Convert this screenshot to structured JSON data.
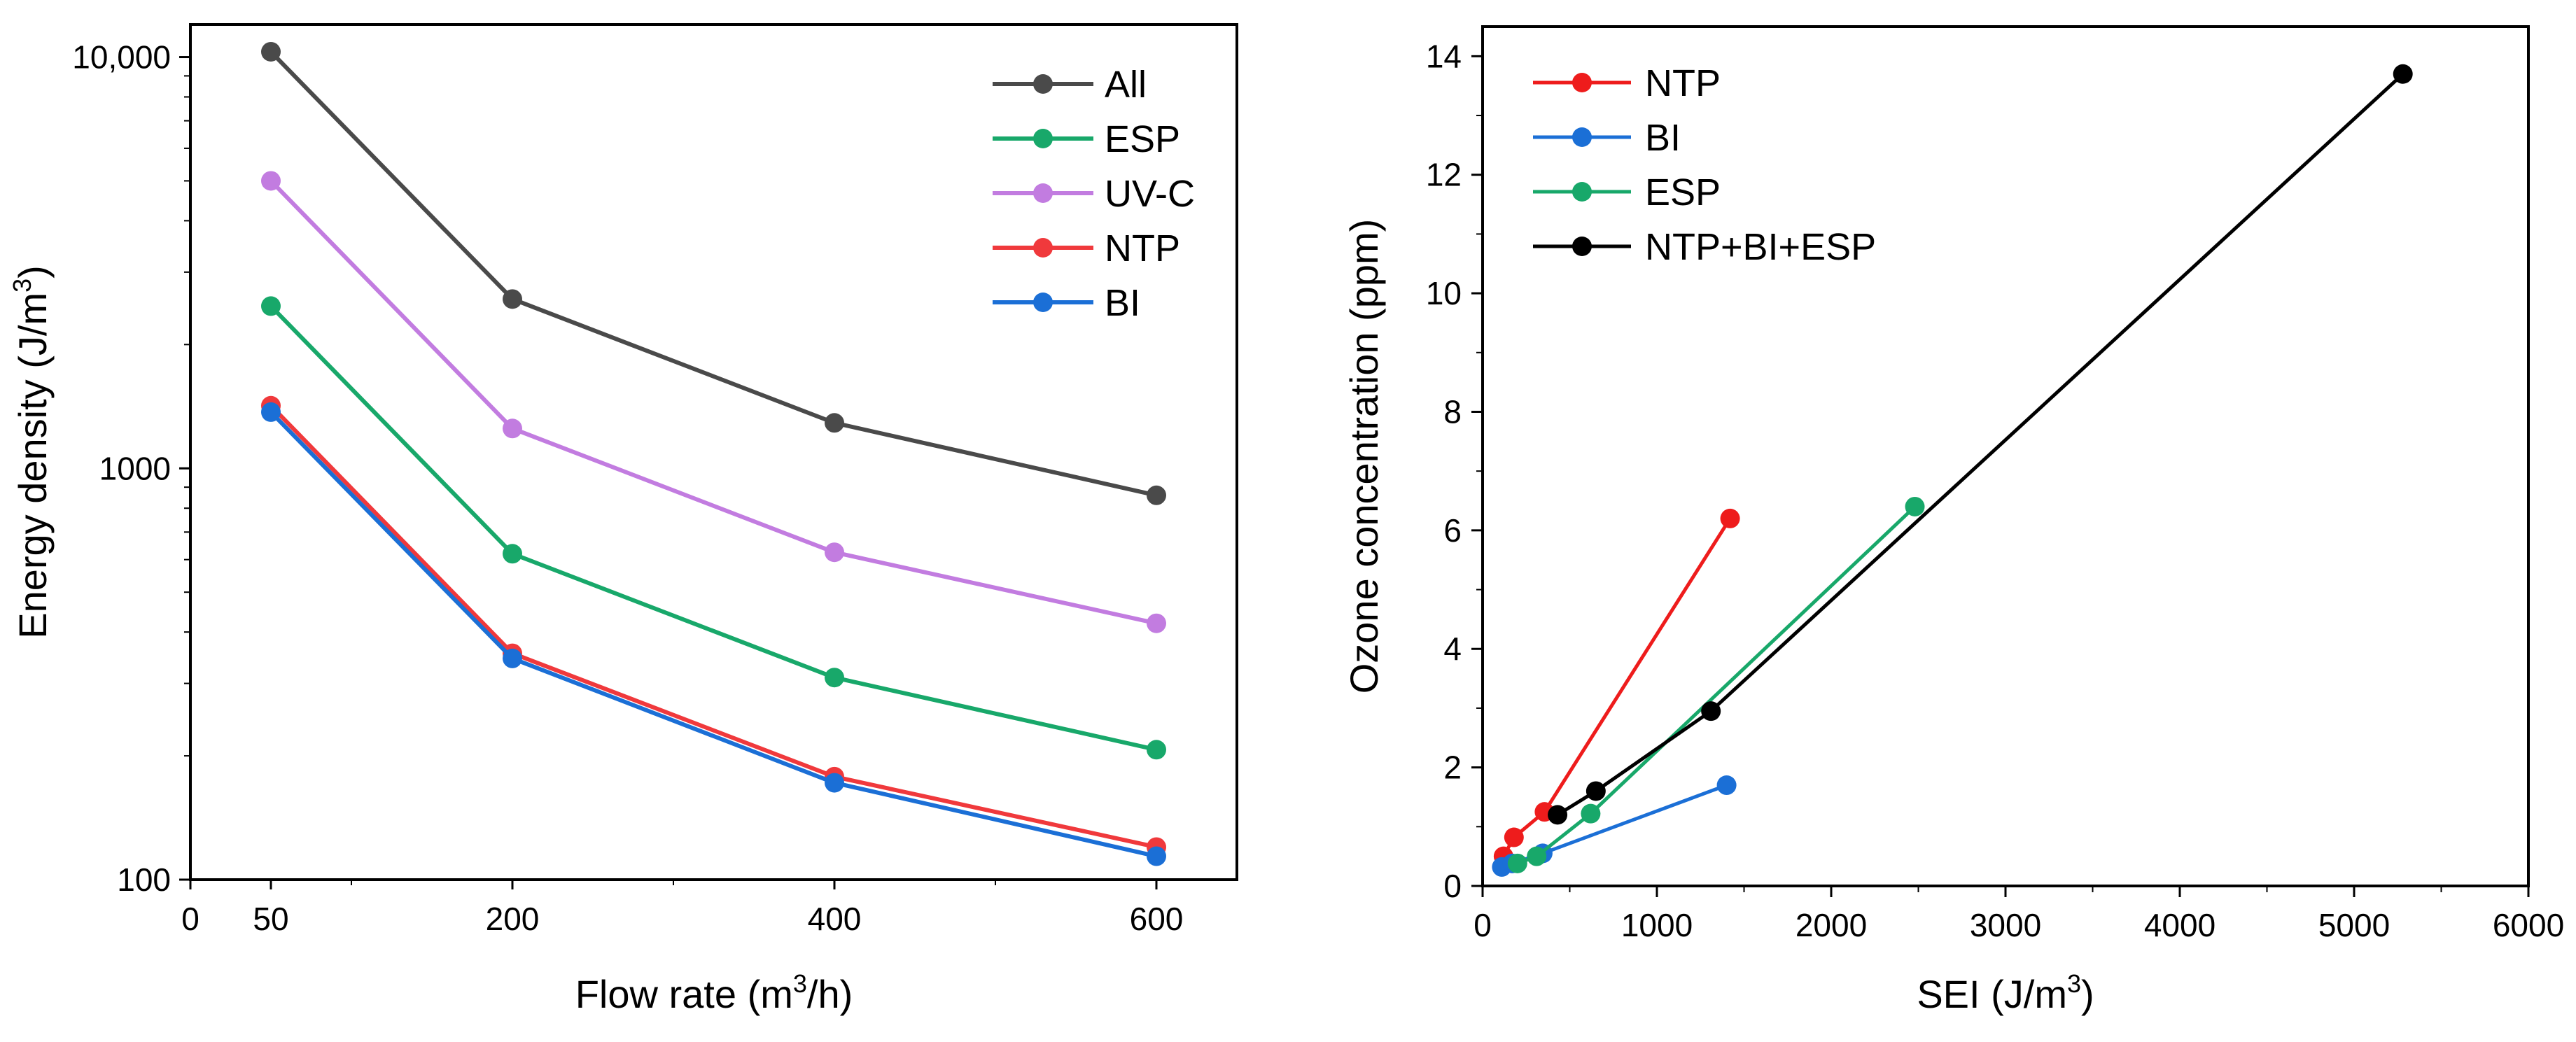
{
  "chart_data": [
    {
      "type": "line",
      "yscale": "log",
      "xlabel": "Flow rate (m",
      "xlabel_sup": "3",
      "xlabel_tail": "/h)",
      "ylabel": "Energy density (J/m",
      "ylabel_sup": "3",
      "ylabel_tail": ")",
      "xlim": [
        0,
        650
      ],
      "ylim": [
        100,
        12000
      ],
      "x_ticks": [
        0,
        50,
        200,
        400,
        600
      ],
      "x_tick_labels": [
        "0",
        "50",
        "200",
        "400",
        "600"
      ],
      "y_ticks": [
        100,
        1000,
        10000
      ],
      "y_tick_labels": [
        "100",
        "1000",
        "10,000"
      ],
      "legend_position": "top-right",
      "x": [
        50,
        200,
        400,
        600
      ],
      "series": [
        {
          "name": "All",
          "color": "#4a4a4a",
          "values": [
            10300,
            2580,
            1290,
            860
          ]
        },
        {
          "name": "ESP",
          "color": "#18a86a",
          "values": [
            2480,
            620,
            310,
            207
          ]
        },
        {
          "name": "UV-C",
          "color": "#c27ce0",
          "values": [
            5000,
            1250,
            625,
            420
          ]
        },
        {
          "name": "NTP",
          "color": "#f0393c",
          "values": [
            1420,
            355,
            178,
            120
          ]
        },
        {
          "name": "BI",
          "color": "#1b6fd6",
          "values": [
            1370,
            345,
            172,
            114
          ]
        }
      ]
    },
    {
      "type": "line",
      "xlabel": "SEI (J/m",
      "xlabel_sup": "3",
      "xlabel_tail": ")",
      "ylabel": "Ozone concentration (ppm)",
      "xlim": [
        0,
        6000
      ],
      "ylim": [
        0,
        14.5
      ],
      "x_ticks": [
        0,
        1000,
        2000,
        3000,
        4000,
        5000,
        6000
      ],
      "x_tick_labels": [
        "0",
        "1000",
        "2000",
        "3000",
        "4000",
        "5000",
        "6000"
      ],
      "y_ticks": [
        0,
        2,
        4,
        6,
        8,
        10,
        12,
        14
      ],
      "y_tick_labels": [
        "0",
        "2",
        "4",
        "6",
        "8",
        "10",
        "12",
        "14"
      ],
      "legend_position": "top-left",
      "series": [
        {
          "name": "NTP",
          "color": "#ee1c1c",
          "x": [
            120,
            180,
            355,
            1420
          ],
          "y": [
            0.5,
            0.82,
            1.25,
            6.2
          ]
        },
        {
          "name": "BI",
          "color": "#1b6fd6",
          "x": [
            110,
            170,
            345,
            1400
          ],
          "y": [
            0.32,
            0.38,
            0.55,
            1.7
          ]
        },
        {
          "name": "ESP",
          "color": "#18a86a",
          "x": [
            200,
            310,
            620,
            2480
          ],
          "y": [
            0.38,
            0.5,
            1.22,
            6.4
          ]
        },
        {
          "name": "NTP+BI+ESP",
          "color": "#000000",
          "x": [
            430,
            650,
            1310,
            5280
          ],
          "y": [
            1.2,
            1.6,
            2.95,
            13.7
          ]
        }
      ]
    }
  ]
}
